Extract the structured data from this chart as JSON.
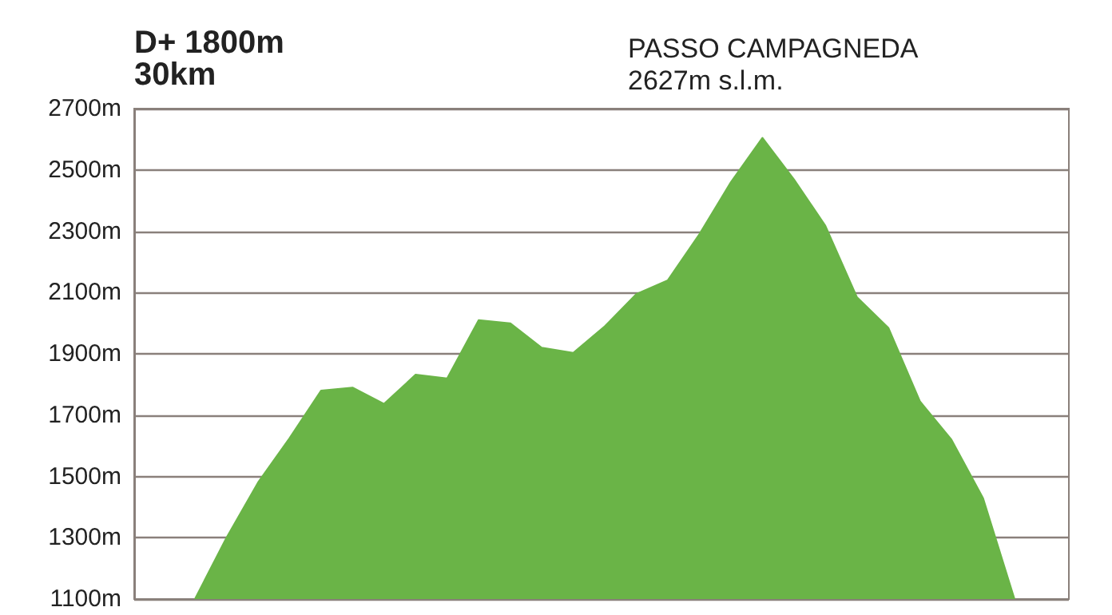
{
  "chart_data": {
    "type": "area",
    "title": "D+ 1800m",
    "subtitle": "30km",
    "annotations": [
      "PASSO CAMPAGNEDA",
      "2627m s.l.m."
    ],
    "categories": [
      null,
      null,
      null,
      null,
      null,
      null,
      null,
      null,
      null,
      null,
      null,
      null,
      null,
      null,
      null,
      null,
      null,
      null,
      null,
      null,
      null,
      null,
      null,
      null,
      null,
      null,
      null
    ],
    "series": [
      {
        "color": "#6ab447",
        "values": [
          1100,
          1300,
          1480,
          1625,
          1780,
          1790,
          1737,
          1832,
          1820,
          2010,
          2000,
          1920,
          1903,
          1990,
          2095,
          2140,
          2290,
          2460,
          2605,
          2470,
          2318,
          2085,
          1985,
          1745,
          1620,
          1430,
          1100
        ]
      }
    ],
    "ylim": [
      1100,
      2700
    ],
    "yticks": [
      {
        "value": 1100,
        "label": "1100m"
      },
      {
        "value": 1300,
        "label": "1300m"
      },
      {
        "value": 1500,
        "label": "1500m"
      },
      {
        "value": 1700,
        "label": "1700m"
      },
      {
        "value": 1900,
        "label": "1900m"
      },
      {
        "value": 2100,
        "label": "2100m"
      },
      {
        "value": 2300,
        "label": "2300m"
      },
      {
        "value": 2500,
        "label": "2500m"
      },
      {
        "value": 2700,
        "label": "2700m"
      }
    ],
    "grid": "y",
    "tick_labels": "y",
    "marker": "none"
  }
}
